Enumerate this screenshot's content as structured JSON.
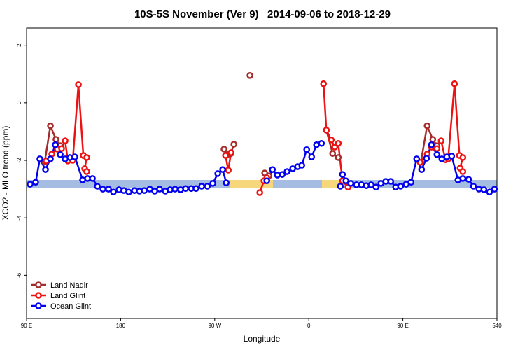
{
  "chart_data": {
    "type": "line",
    "title": "10S-5S November (Ver 9)   2014-09-06 to 2018-12-29",
    "xlabel": "Longitude",
    "ylabel": "XCO2 - MLO trend (ppm)",
    "xlim": [
      90,
      540
    ],
    "ylim": [
      -7.5,
      2.6
    ],
    "xticks": [
      {
        "value": 90,
        "label": "90 E"
      },
      180,
      {
        "value": 270,
        "label": "90 W"
      },
      {
        "value": 360,
        "label": "0"
      },
      {
        "value": 450,
        "label": "90 E"
      },
      540
    ],
    "yticks": [
      2,
      0,
      -2,
      -4,
      -6
    ],
    "legend": "lower left",
    "series": [
      {
        "name": "Land Nadir",
        "color": "#a52a2a",
        "x": [
          107.4,
          112.8,
          118.1,
          122.2,
          null,
          278.9,
          282.3,
          285.6,
          288.3,
          null,
          303.7,
          null,
          317.8,
          321.8,
          null,
          376.8,
          382.8,
          388.2,
          null,
          467.2,
          473.2,
          478.6,
          482.6
        ],
        "values": [
          -2.05,
          -0.8,
          -1.27,
          -1.49,
          null,
          -1.61,
          -1.8,
          -1.76,
          -1.44,
          null,
          0.95,
          null,
          -2.44,
          -2.54,
          null,
          -0.95,
          -1.76,
          -1.9,
          null,
          -2.07,
          -0.8,
          -1.27,
          -1.49
        ]
      },
      {
        "name": "Land Glint",
        "color": "#ee1111",
        "x": [
          108.8,
          114.1,
          119.5,
          123.5,
          126.9,
          129.5,
          134.2,
          139.6,
          144.3,
          147.6,
          145.6,
          147.6,
          null,
          280.3,
          283.0,
          285.6,
          null,
          313.1,
          317.1,
          319.8,
          null,
          374.1,
          376.8,
          381.5,
          384.8,
          388.2,
          392.2,
          397.5,
          null,
          466.5,
          473.2,
          477.3,
          482.6,
          486.6,
          490.7,
          493.3,
          499.4,
          504.1,
          507.4,
          504.7,
          507.4
        ],
        "values": [
          -2.02,
          -1.78,
          -1.61,
          -1.59,
          -1.32,
          -2.02,
          -2.0,
          0.63,
          -1.83,
          -1.9,
          -2.29,
          -2.39,
          null,
          -1.83,
          -2.34,
          -1.73,
          null,
          -3.12,
          -2.71,
          -2.61,
          null,
          0.66,
          -0.95,
          -1.29,
          -1.54,
          -1.41,
          -2.71,
          -2.93,
          null,
          -2.07,
          -1.78,
          -1.54,
          -1.59,
          -1.32,
          -1.98,
          -1.95,
          0.66,
          -1.83,
          -1.9,
          -2.27,
          -2.39
        ]
      },
      {
        "name": "Ocean Glint",
        "color": "#0000ee",
        "x": [
          93.4,
          98.7,
          102.7,
          108.1,
          112.8,
          117.5,
          122.2,
          126.9,
          131.5,
          136.2,
          143.6,
          148.3,
          153.0,
          157.7,
          163.0,
          168.4,
          173.1,
          178.4,
          183.1,
          187.8,
          193.2,
          197.9,
          202.6,
          207.9,
          212.6,
          217.3,
          222.7,
          227.4,
          232.0,
          237.4,
          242.1,
          247.5,
          252.1,
          257.5,
          262.9,
          268.2,
          272.9,
          277.6,
          281.0,
          null,
          319.8,
          325.2,
          329.9,
          334.6,
          339.2,
          344.6,
          349.3,
          353.3,
          358.0,
          362.7,
          367.4,
          372.1,
          null,
          390.2,
          392.2,
          395.5,
          400.2,
          405.6,
          410.3,
          415.0,
          419.6,
          424.3,
          429.0,
          433.7,
          438.4,
          443.1,
          447.8,
          453.1,
          457.8,
          463.2,
          467.9,
          472.6,
          477.3,
          482.6,
          487.3,
          492.0,
          496.7,
          502.7,
          507.4,
          512.8,
          517.5,
          522.8,
          527.5,
          532.9,
          537.6
        ],
        "values": [
          -2.83,
          -2.76,
          -1.95,
          -2.32,
          -1.95,
          -1.46,
          -1.8,
          -1.95,
          -1.9,
          -1.88,
          -2.68,
          -2.63,
          -2.63,
          -2.9,
          -3.0,
          -3.0,
          -3.1,
          -3.02,
          -3.05,
          -3.1,
          -3.05,
          -3.07,
          -3.05,
          -3.0,
          -3.07,
          -3.0,
          -3.07,
          -3.02,
          -3.0,
          -3.02,
          -2.98,
          -2.98,
          -2.98,
          -2.9,
          -2.9,
          -2.8,
          -2.46,
          -2.32,
          -2.78,
          null,
          -2.71,
          -2.32,
          -2.51,
          -2.49,
          -2.39,
          -2.29,
          -2.22,
          -2.17,
          -1.63,
          -1.88,
          -1.46,
          -1.41,
          null,
          -2.9,
          -2.49,
          -2.71,
          -2.8,
          -2.85,
          -2.85,
          -2.88,
          -2.85,
          -2.93,
          -2.8,
          -2.73,
          -2.73,
          -2.93,
          -2.9,
          -2.83,
          -2.76,
          -1.95,
          -2.32,
          -1.93,
          -1.46,
          -1.8,
          -1.95,
          -1.88,
          -1.85,
          -2.68,
          -2.63,
          -2.66,
          -2.9,
          -3.0,
          -3.02,
          -3.1,
          -3.0
        ]
      }
    ]
  }
}
